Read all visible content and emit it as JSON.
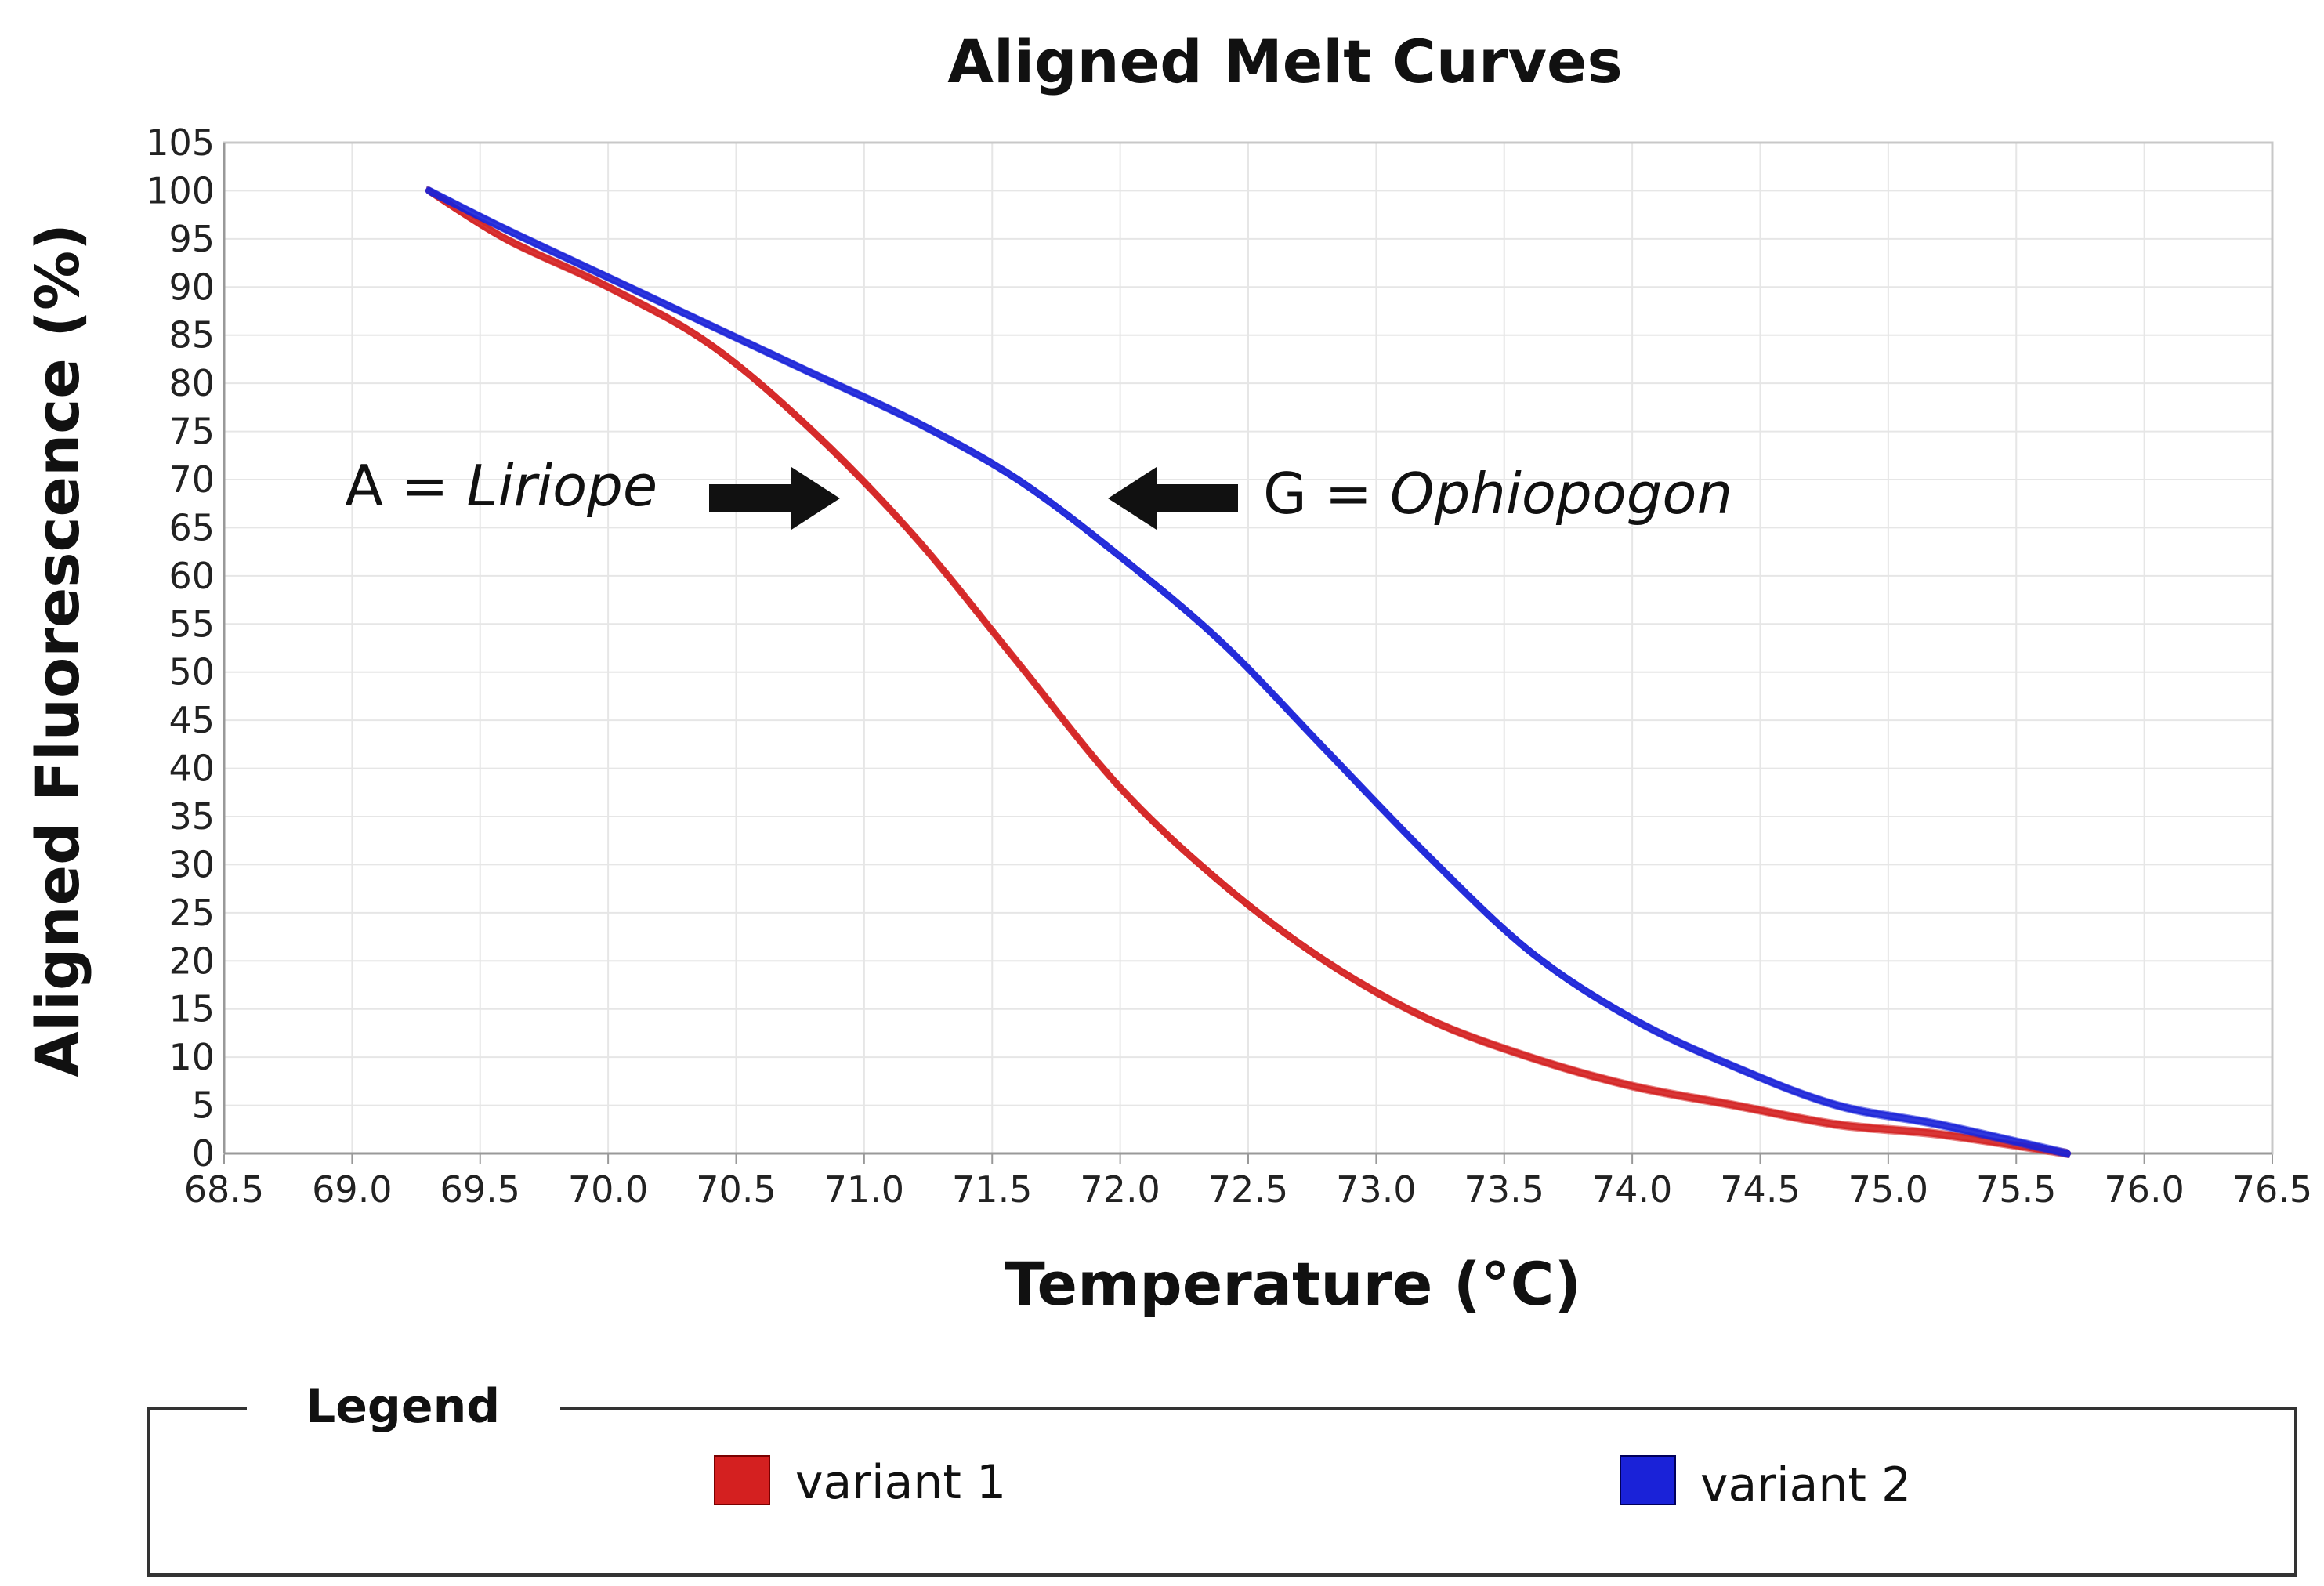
{
  "chart_data": {
    "type": "line",
    "title": "Aligned Melt Curves",
    "xlabel": "Temperature (°C)",
    "ylabel": "Aligned Fluorescence (%)",
    "xlim": [
      68.5,
      76.5
    ],
    "ylim": [
      0,
      105
    ],
    "x_ticks": [
      "68.5",
      "69.0",
      "69.5",
      "70.0",
      "70.5",
      "71.0",
      "71.5",
      "72.0",
      "72.5",
      "73.0",
      "73.5",
      "74.0",
      "74.5",
      "75.0",
      "75.5",
      "76.0",
      "76.5"
    ],
    "y_ticks": [
      "0",
      "5",
      "10",
      "15",
      "20",
      "25",
      "30",
      "35",
      "40",
      "45",
      "50",
      "55",
      "60",
      "65",
      "70",
      "75",
      "80",
      "85",
      "90",
      "95",
      "100",
      "105"
    ],
    "grid": true,
    "series": [
      {
        "name": "variant 1",
        "color": "#d42020",
        "x": [
          69.3,
          69.6,
          70.0,
          70.4,
          70.8,
          71.2,
          71.6,
          72.0,
          72.4,
          72.8,
          73.2,
          73.6,
          74.0,
          74.4,
          74.8,
          75.2,
          75.7
        ],
        "y": [
          100,
          95,
          90,
          84,
          75,
          64,
          51,
          38,
          28,
          20,
          14,
          10,
          7,
          5,
          3,
          2,
          0
        ]
      },
      {
        "name": "variant 2",
        "color": "#1a22d8",
        "x": [
          69.3,
          69.6,
          70.0,
          70.4,
          70.8,
          71.2,
          71.6,
          72.0,
          72.4,
          72.8,
          73.2,
          73.6,
          74.0,
          74.4,
          74.8,
          75.2,
          75.7
        ],
        "y": [
          100,
          96,
          91,
          86,
          81,
          76,
          70,
          62,
          53,
          42,
          31,
          21,
          14,
          9,
          5,
          3,
          0
        ]
      }
    ],
    "annotations": [
      {
        "prefix": "A = ",
        "name": "Liriope",
        "points_to": "variant 1"
      },
      {
        "prefix": "G = ",
        "name": "Ophiopogon",
        "points_to": "variant 2"
      }
    ],
    "legend": {
      "title": "Legend",
      "position": "bottom",
      "entries": [
        {
          "label": "variant 1",
          "color": "#d42020"
        },
        {
          "label": "variant 2",
          "color": "#1a22d8"
        }
      ]
    }
  }
}
